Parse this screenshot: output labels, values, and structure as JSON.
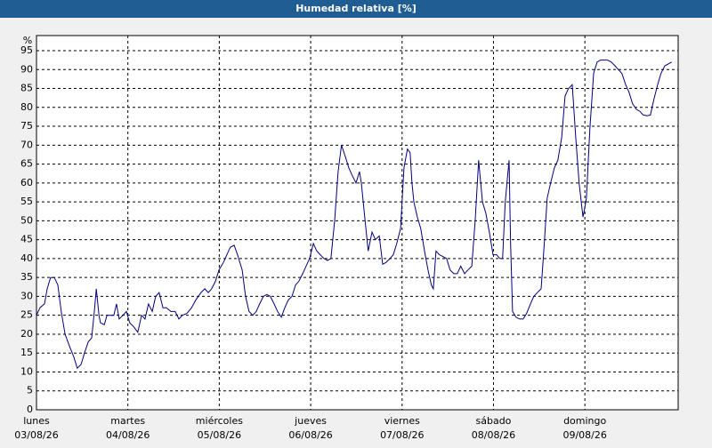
{
  "chart_data": {
    "type": "line",
    "title": "Humedad relativa [%]",
    "ylabel": "%",
    "color": "#000080",
    "grid": true,
    "xlim": [
      0,
      168.5
    ],
    "ylim": [
      0,
      99
    ],
    "yticks": [
      0,
      5,
      10,
      15,
      20,
      25,
      30,
      35,
      40,
      45,
      50,
      55,
      60,
      65,
      70,
      75,
      80,
      85,
      90,
      95
    ],
    "xticks": [
      {
        "value": 0,
        "label": [
          "lunes",
          "03/08/26"
        ]
      },
      {
        "value": 24,
        "label": [
          "martes",
          "04/08/26"
        ]
      },
      {
        "value": 48,
        "label": [
          "miércoles",
          "05/08/26"
        ]
      },
      {
        "value": 72,
        "label": [
          "jueves",
          "06/08/26"
        ]
      },
      {
        "value": 96,
        "label": [
          "viernes",
          "07/08/26"
        ]
      },
      {
        "value": 120,
        "label": [
          "sábado",
          "08/08/26"
        ]
      },
      {
        "value": 144,
        "label": [
          "domingo",
          "09/08/26"
        ]
      }
    ],
    "x": [
      0,
      0.9,
      2.1,
      2.8,
      3.7,
      4.7,
      5.6,
      6.5,
      7.5,
      8.6,
      9.8,
      10.7,
      11.7,
      12.6,
      13.6,
      14.5,
      15.2,
      15.7,
      16.4,
      16.8,
      17.8,
      18.5,
      19.4,
      20.3,
      21.0,
      21.7,
      22.7,
      23.6,
      24.5,
      25.5,
      26.6,
      27.6,
      28.5,
      29.4,
      30.4,
      31.3,
      32.2,
      33.2,
      34.1,
      35.3,
      36.4,
      37.4,
      38.3,
      39.5,
      40.7,
      41.8,
      43.2,
      44.2,
      45.1,
      46.0,
      47.0,
      47.9,
      49.1,
      50.0,
      50.9,
      51.9,
      52.8,
      54.0,
      54.9,
      55.8,
      56.8,
      57.7,
      58.6,
      59.6,
      60.5,
      61.4,
      62.4,
      63.3,
      64.3,
      65.2,
      66.1,
      67.1,
      68.0,
      68.9,
      69.9,
      70.8,
      71.7,
      72.7,
      73.6,
      74.5,
      75.5,
      76.4,
      77.3,
      78.3,
      79.2,
      80.1,
      81.1,
      82.0,
      82.9,
      83.9,
      84.8,
      85.3,
      86.2,
      87.1,
      88.1,
      89.0,
      90.0,
      90.9,
      91.8,
      92.8,
      93.7,
      94.6,
      95.6,
      96.5,
      97.4,
      98.1,
      98.6,
      99.1,
      100.0,
      100.9,
      101.9,
      102.8,
      103.7,
      104.2,
      104.9,
      105.8,
      106.8,
      107.7,
      108.6,
      109.6,
      110.5,
      111.4,
      112.4,
      113.3,
      114.3,
      115.2,
      116.1,
      117.1,
      118.0,
      118.9,
      119.9,
      120.8,
      121.7,
      122.4,
      123.1,
      124.1,
      124.5,
      125.0,
      125.9,
      126.9,
      127.8,
      128.7,
      129.7,
      130.6,
      131.5,
      132.5,
      133.2,
      134.1,
      135.0,
      136.0,
      136.9,
      137.9,
      138.8,
      139.7,
      140.7,
      141.6,
      142.5,
      143.5,
      143.9,
      144.4,
      145.3,
      146.3,
      147.2,
      148.1,
      149.1,
      150.0,
      150.9,
      151.9,
      152.8,
      153.7,
      154.7,
      155.6,
      156.5,
      157.5,
      158.4,
      159.3,
      160.3,
      161.2,
      162.1,
      163.1,
      164.0,
      165.0,
      165.9,
      166.8
    ],
    "values": [
      25,
      27,
      28,
      32,
      35,
      35,
      33,
      26,
      20,
      17,
      14,
      11,
      12,
      15,
      18,
      19,
      26,
      32,
      25,
      23,
      22.5,
      25,
      25,
      25,
      28,
      24,
      25,
      26,
      23,
      22,
      20.5,
      25,
      24,
      28,
      26,
      30,
      31,
      27,
      27,
      26,
      26,
      24,
      25,
      25.5,
      27,
      29,
      31,
      32,
      31,
      32,
      34,
      37,
      39,
      41,
      43,
      43.5,
      41,
      37,
      30,
      26,
      25,
      26,
      28,
      30,
      30.5,
      30,
      28,
      26,
      24.5,
      27,
      29,
      30,
      33,
      34,
      36,
      38,
      40,
      44,
      42,
      41,
      40,
      39.5,
      40,
      50,
      63,
      70,
      67,
      64,
      62,
      60,
      63,
      60,
      51,
      42,
      47,
      45,
      46,
      38.5,
      39,
      40,
      41,
      44,
      48,
      64,
      69,
      68,
      60,
      55,
      51,
      48,
      42,
      37,
      33,
      32,
      42,
      41,
      40.5,
      40,
      37,
      36,
      36,
      38,
      36,
      37,
      38,
      50,
      66,
      55,
      52,
      47,
      41,
      41,
      40,
      40,
      55,
      66,
      44,
      26,
      24.5,
      24,
      24,
      25.5,
      28,
      30,
      31,
      32,
      42,
      56,
      60,
      64,
      66,
      72,
      83,
      85,
      86,
      72,
      60,
      51,
      53,
      56,
      74,
      89,
      92,
      92.5,
      92.5,
      92.5,
      92,
      91,
      90,
      89,
      86,
      84,
      81,
      79.5,
      79,
      78,
      77.8,
      78,
      82,
      86,
      89,
      91,
      91.5,
      92
    ]
  }
}
